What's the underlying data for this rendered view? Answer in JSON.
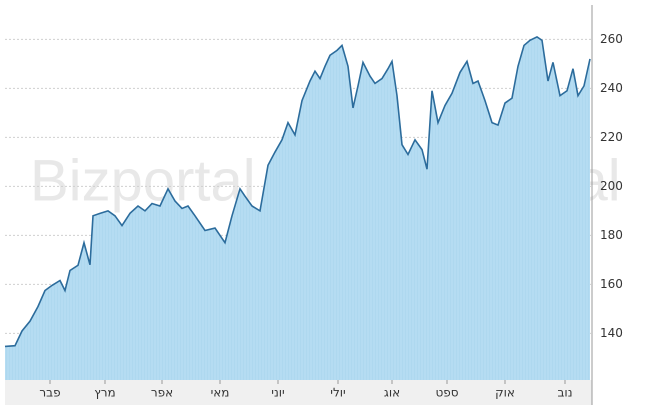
{
  "chart_data": {
    "type": "area",
    "watermark": "Bizportal",
    "color": "#2c6c9c",
    "fill": "#b5dcf2",
    "grid": true,
    "x": [
      0,
      10,
      17,
      25,
      33,
      40,
      47,
      55,
      60,
      65,
      73,
      79,
      85,
      88,
      95,
      103,
      110,
      117,
      125,
      133,
      140,
      147,
      155,
      163,
      170,
      177,
      183,
      190,
      200,
      210,
      220,
      227,
      235,
      240,
      247,
      255,
      263,
      270,
      277,
      283,
      290,
      297,
      305,
      310,
      315,
      320,
      325,
      332,
      337,
      343,
      348,
      353,
      358,
      365,
      370,
      377,
      383,
      387,
      392,
      397,
      403,
      410,
      417,
      422,
      427,
      433,
      440,
      447,
      455,
      462,
      468,
      473,
      480,
      487,
      493,
      500,
      507,
      513,
      519,
      525,
      532,
      537,
      543,
      548,
      555,
      562,
      568,
      573,
      579,
      585
    ],
    "values": [
      134.7,
      135,
      141,
      145,
      151,
      157.5,
      159.6,
      161.6,
      157.5,
      165.7,
      167.8,
      177,
      168,
      188,
      189,
      190,
      188,
      184,
      189,
      192,
      190,
      193,
      192,
      199,
      194,
      191,
      192,
      188,
      182,
      183,
      177,
      188,
      199,
      196,
      192,
      190,
      208.6,
      214,
      219,
      226,
      221,
      235,
      243,
      247,
      244,
      249,
      253.5,
      255.5,
      257.5,
      249,
      232,
      241,
      250.6,
      245,
      242,
      244,
      248,
      251,
      237,
      217,
      213,
      219,
      215,
      207,
      239,
      226,
      233,
      238,
      246.5,
      251,
      242,
      243,
      235,
      226,
      225,
      234,
      236,
      249,
      257.5,
      259.6,
      261,
      259.6,
      243,
      250.6,
      237,
      239,
      248,
      237,
      241,
      252
    ],
    "xlim": [
      0,
      587
    ],
    "ylim": [
      121,
      274
    ],
    "yticks": [
      140,
      160,
      180,
      200,
      220,
      240,
      260
    ],
    "xticks": [
      {
        "value": 45,
        "label": "פבר"
      },
      {
        "value": 100,
        "label": "מרץ"
      },
      {
        "value": 157,
        "label": "אפר"
      },
      {
        "value": 215,
        "label": "מאי"
      },
      {
        "value": 273,
        "label": "יוני"
      },
      {
        "value": 333,
        "label": "יולי"
      },
      {
        "value": 387,
        "label": "אוג"
      },
      {
        "value": 442,
        "label": "ספט"
      },
      {
        "value": 500,
        "label": "אוק"
      },
      {
        "value": 560,
        "label": "נוב"
      }
    ]
  }
}
